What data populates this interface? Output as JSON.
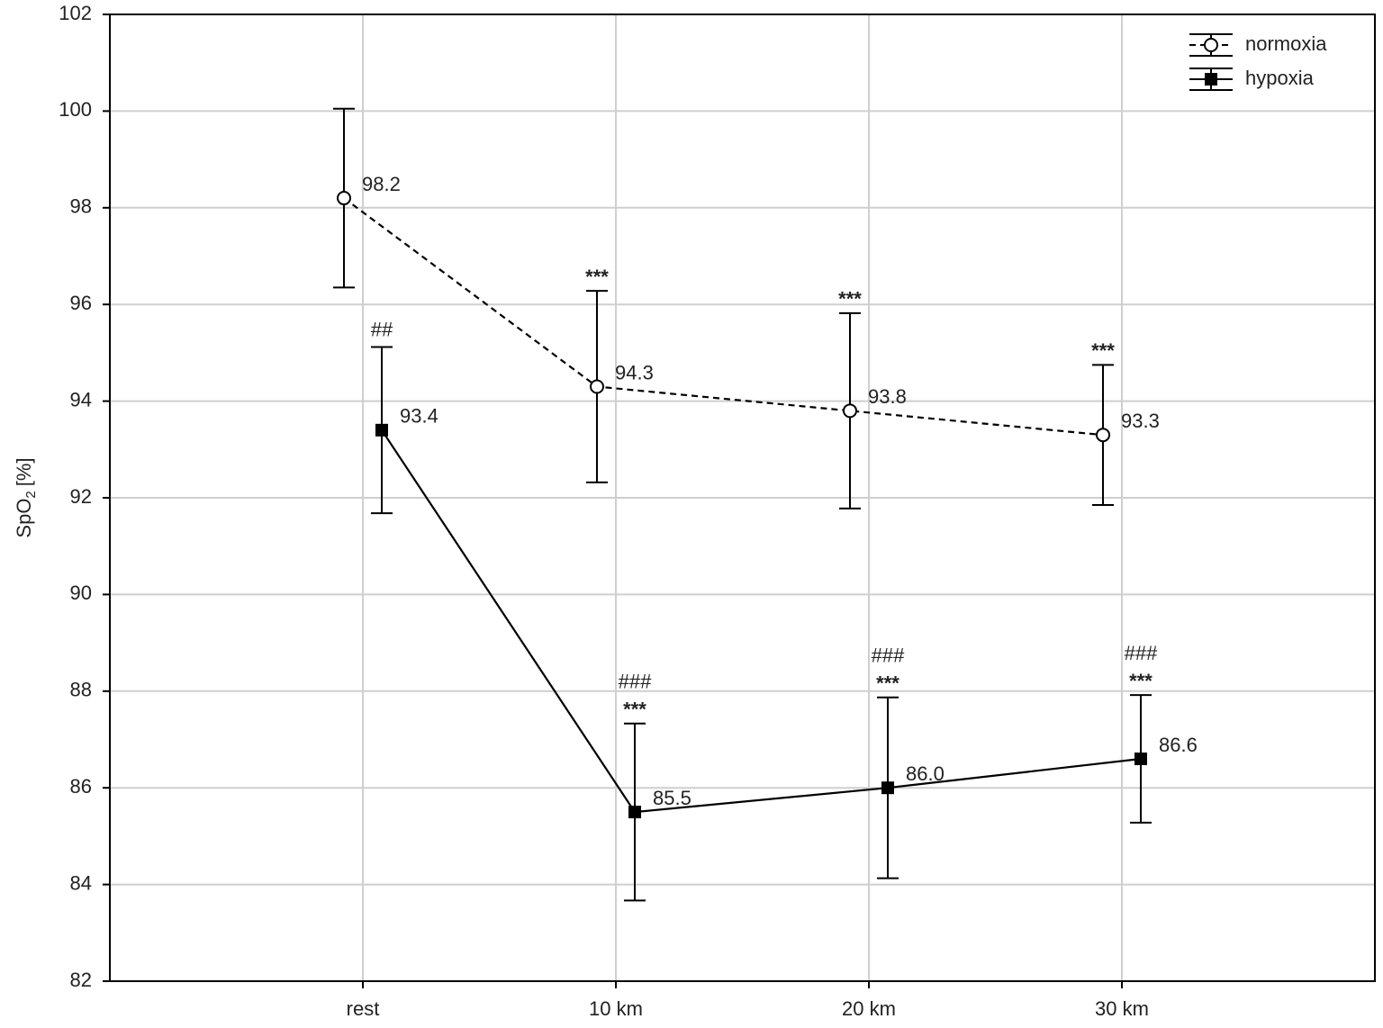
{
  "chart_data": {
    "type": "line",
    "y_label": {
      "main": "SpO",
      "sub": "2",
      "unit": "[%]"
    },
    "categories": [
      "rest",
      "10 km",
      "20 km",
      "30 km"
    ],
    "series": [
      {
        "name": "normoxia",
        "color": "#000000",
        "marker": "circle",
        "dashed": true,
        "values": [
          98.2,
          94.3,
          93.8,
          93.3
        ],
        "value_labels": [
          "98.2",
          "94.3",
          "93.8",
          "93.3"
        ],
        "errors": [
          1.85,
          1.98,
          2.02,
          1.45
        ],
        "stars": [
          null,
          "***",
          "***",
          "***"
        ],
        "hashes": [
          null,
          null,
          null,
          null
        ]
      },
      {
        "name": "hypoxia",
        "color": "#000000",
        "marker": "square",
        "dashed": false,
        "values": [
          93.4,
          85.5,
          86.0,
          86.6
        ],
        "value_labels": [
          "93.4",
          "85.5",
          "86.0",
          "86.6"
        ],
        "errors": [
          1.72,
          1.83,
          1.87,
          1.32
        ],
        "stars": [
          null,
          "***",
          "***",
          "***"
        ],
        "hashes": [
          "##",
          "###",
          "###",
          "###"
        ]
      }
    ],
    "ylim": [
      82,
      102
    ],
    "yticks": [
      82,
      84,
      86,
      88,
      90,
      92,
      94,
      96,
      98,
      100,
      102
    ],
    "grid": true,
    "legend": "top-right"
  }
}
